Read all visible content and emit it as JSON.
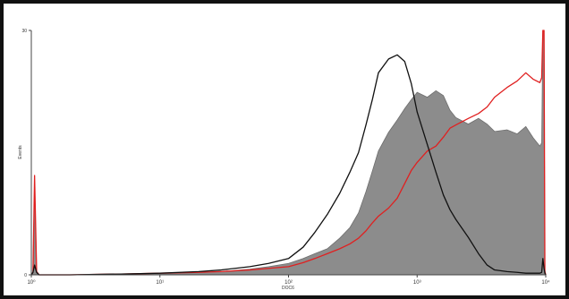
{
  "chart_data": {
    "type": "area",
    "title": "",
    "xlabel": "DOC6",
    "ylabel": "Events",
    "x_scale": "log",
    "xlim": [
      1,
      10000
    ],
    "ylim": [
      0,
      30
    ],
    "x_ticks": [
      {
        "value": 1,
        "label": "10⁰"
      },
      {
        "value": 10,
        "label": "10¹"
      },
      {
        "value": 100,
        "label": "10²"
      },
      {
        "value": 1000,
        "label": "10³"
      },
      {
        "value": 10000,
        "label": "10⁴"
      }
    ],
    "y_ticks": [
      {
        "value": 0,
        "label": "0"
      },
      {
        "value": 30,
        "label": "30"
      }
    ],
    "grid": false,
    "series": [
      {
        "style": "filled",
        "color": "#8c8c8c",
        "x": [
          1,
          1.03,
          1.06,
          1.1,
          1.15,
          2,
          5,
          10,
          20,
          30,
          50,
          70,
          100,
          130,
          160,
          200,
          250,
          300,
          350,
          400,
          450,
          500,
          600,
          700,
          800,
          900,
          1000,
          1200,
          1400,
          1600,
          1800,
          2000,
          2500,
          3000,
          3500,
          4000,
          5000,
          6000,
          7000,
          8000,
          9000,
          9300,
          9500,
          9700,
          9850,
          10000
        ],
        "y": [
          0,
          0.3,
          11.5,
          0.4,
          0,
          0,
          0.1,
          0.2,
          0.3,
          0.4,
          0.7,
          1.0,
          1.4,
          2.0,
          2.6,
          3.2,
          4.5,
          5.8,
          7.6,
          10.2,
          12.8,
          15.2,
          17.5,
          19.0,
          20.4,
          21.5,
          22.4,
          21.8,
          22.6,
          22.0,
          20.2,
          19.3,
          18.5,
          19.2,
          18.5,
          17.6,
          17.8,
          17.3,
          18.2,
          16.8,
          15.8,
          16.2,
          30.0,
          30.0,
          0.5,
          0
        ]
      },
      {
        "style": "line",
        "color": "#e02020",
        "x": [
          1,
          1.03,
          1.06,
          1.1,
          1.15,
          2,
          5,
          10,
          20,
          30,
          50,
          70,
          100,
          130,
          160,
          200,
          250,
          300,
          350,
          400,
          450,
          500,
          600,
          700,
          800,
          900,
          1000,
          1200,
          1400,
          1600,
          1800,
          2000,
          2500,
          3000,
          3500,
          4000,
          5000,
          6000,
          7000,
          8000,
          9000,
          9300,
          9500,
          9700,
          9850,
          10000
        ],
        "y": [
          0,
          0.3,
          12.2,
          0.4,
          0,
          0,
          0.1,
          0.2,
          0.3,
          0.4,
          0.6,
          0.8,
          1.0,
          1.5,
          2.0,
          2.6,
          3.2,
          3.8,
          4.5,
          5.4,
          6.4,
          7.2,
          8.2,
          9.4,
          11.2,
          12.8,
          13.8,
          15.2,
          15.8,
          16.9,
          18.0,
          18.4,
          19.2,
          19.8,
          20.6,
          21.8,
          23.0,
          23.8,
          24.8,
          24.0,
          23.6,
          24.2,
          30.0,
          30.0,
          0.4,
          0
        ]
      },
      {
        "style": "line",
        "color": "#111111",
        "x": [
          1,
          1.03,
          1.06,
          1.1,
          1.15,
          2,
          5,
          10,
          20,
          30,
          50,
          70,
          100,
          130,
          160,
          200,
          250,
          300,
          350,
          400,
          450,
          500,
          600,
          700,
          800,
          900,
          1000,
          1200,
          1400,
          1600,
          1800,
          2000,
          2500,
          3000,
          3500,
          4000,
          5000,
          6000,
          7000,
          8000,
          9000,
          9300,
          9500,
          9700,
          9850,
          10000
        ],
        "y": [
          0,
          0.3,
          1.2,
          0.3,
          0,
          0,
          0.1,
          0.2,
          0.4,
          0.6,
          1.0,
          1.4,
          2.0,
          3.4,
          5.2,
          7.4,
          10.0,
          12.6,
          15.0,
          18.4,
          21.6,
          24.8,
          26.5,
          27.0,
          26.2,
          23.5,
          20.0,
          16.0,
          12.6,
          9.8,
          8.0,
          6.8,
          4.6,
          2.6,
          1.2,
          0.6,
          0.4,
          0.3,
          0.2,
          0.2,
          0.2,
          0.3,
          2.0,
          0.8,
          0.2,
          0
        ]
      }
    ]
  }
}
